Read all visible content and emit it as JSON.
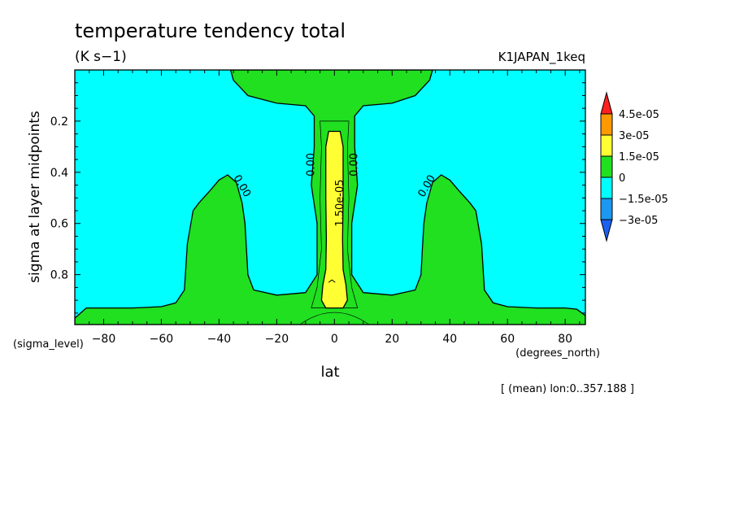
{
  "chart_data": {
    "type": "heatmap",
    "title": "temperature tendency total",
    "units": "(K s−1)",
    "run_name": "K1JAPAN_1keq",
    "xlabel": "lat",
    "xunits": "(degrees_north)",
    "ylabel": "sigma at layer midpoints",
    "yunits": "(sigma_level)",
    "footnote": "[ (mean) lon:0..357.188 ]",
    "xlim": [
      -90,
      87
    ],
    "ylim": [
      0.995,
      0.0
    ],
    "y_inverted": true,
    "xticks": [
      -80,
      -60,
      -40,
      -20,
      0,
      20,
      40,
      60,
      80
    ],
    "xtick_labels": [
      "−80",
      "−60",
      "−40",
      "−20",
      "0",
      "20",
      "40",
      "60",
      "80"
    ],
    "yticks": [
      0.2,
      0.4,
      0.6,
      0.8
    ],
    "ytick_labels": [
      "0.2",
      "0.4",
      "0.6",
      "0.8"
    ],
    "contour_labels": [
      {
        "text": "0.00",
        "lat": -33,
        "sigma": 0.46
      },
      {
        "text": "0.00",
        "lat": -7,
        "sigma": 0.37
      },
      {
        "text": "0.00",
        "lat": 8,
        "sigma": 0.37
      },
      {
        "text": "1.50e-05",
        "lat": 3,
        "sigma": 0.52
      },
      {
        "text": "0.00",
        "lat": 33,
        "sigma": 0.46
      }
    ],
    "colorbar": {
      "levels": [
        "4.5e-05",
        "3e-05",
        "1.5e-05",
        "0",
        "−1.5e-05",
        "−3e-05"
      ],
      "colors": [
        "#ff2020",
        "#ff9900",
        "#ffff33",
        "#20e020",
        "#00ffff",
        "#1c98f0"
      ],
      "bins": [
        {
          "range": "> 4.5e-05",
          "color": "#ff2020"
        },
        {
          "range": "3e-05 .. 4.5e-05",
          "color": "#ff9900"
        },
        {
          "range": "1.5e-05 .. 3e-05",
          "color": "#ffff33"
        },
        {
          "range": "0 .. 1.5e-05",
          "color": "#20e020"
        },
        {
          "range": "−1.5e-05 .. 0",
          "color": "#00ffff"
        },
        {
          "range": "−3e-05 .. −1.5e-05",
          "color": "#1c98f0"
        },
        {
          "range": "< −3e-05",
          "color": "#1c60f0"
        }
      ]
    },
    "fields": [
      {
        "name": "background",
        "value_range": "-1.5e-05 .. 0",
        "color": "#00ffff"
      },
      {
        "name": "surface band",
        "value_range": "0 .. 1.5e-05",
        "color": "#20e020",
        "boundary": [
          [
            -90,
            0.97
          ],
          [
            -86,
            0.93
          ],
          [
            -80,
            0.93
          ],
          [
            -70,
            0.93
          ],
          [
            -60,
            0.925
          ],
          [
            -55,
            0.91
          ],
          [
            -52,
            0.86
          ],
          [
            -51,
            0.68
          ],
          [
            -49,
            0.55
          ],
          [
            -47,
            0.52
          ],
          [
            -43,
            0.47
          ],
          [
            -40,
            0.43
          ],
          [
            -37,
            0.41
          ],
          [
            -34,
            0.44
          ],
          [
            -32,
            0.52
          ],
          [
            -31,
            0.6
          ],
          [
            -30.5,
            0.7
          ],
          [
            -30,
            0.8
          ],
          [
            -28,
            0.86
          ],
          [
            -20,
            0.88
          ],
          [
            -10,
            0.87
          ],
          [
            -6,
            0.8
          ],
          [
            -6,
            0.6
          ],
          [
            -8,
            0.45
          ],
          [
            -7,
            0.3
          ],
          [
            -7,
            0.18
          ],
          [
            -10,
            0.14
          ],
          [
            -20,
            0.13
          ],
          [
            -30,
            0.1
          ],
          [
            -35,
            0.04
          ],
          [
            -36,
            0.0
          ],
          [
            34,
            0.0
          ],
          [
            33,
            0.04
          ],
          [
            28,
            0.1
          ],
          [
            20,
            0.13
          ],
          [
            10,
            0.14
          ],
          [
            7,
            0.18
          ],
          [
            7,
            0.3
          ],
          [
            8,
            0.45
          ],
          [
            6,
            0.6
          ],
          [
            6,
            0.8
          ],
          [
            10,
            0.87
          ],
          [
            20,
            0.88
          ],
          [
            28,
            0.86
          ],
          [
            30,
            0.8
          ],
          [
            30.5,
            0.7
          ],
          [
            31,
            0.6
          ],
          [
            32,
            0.52
          ],
          [
            34,
            0.44
          ],
          [
            37,
            0.41
          ],
          [
            40,
            0.43
          ],
          [
            43,
            0.47
          ],
          [
            47,
            0.52
          ],
          [
            49,
            0.55
          ],
          [
            51,
            0.68
          ],
          [
            52,
            0.86
          ],
          [
            55,
            0.91
          ],
          [
            60,
            0.925
          ],
          [
            70,
            0.93
          ],
          [
            80,
            0.93
          ],
          [
            84,
            0.935
          ],
          [
            87,
            0.96
          ],
          [
            87,
            0.995
          ],
          [
            -90,
            0.995
          ]
        ]
      },
      {
        "name": "equatorial core",
        "value_range": "1.5e-05 .. 3e-05",
        "color": "#ffff33",
        "boundary": [
          [
            -2,
            0.24
          ],
          [
            2,
            0.24
          ],
          [
            3,
            0.3
          ],
          [
            3,
            0.5
          ],
          [
            2.8,
            0.66
          ],
          [
            3,
            0.78
          ],
          [
            4,
            0.84
          ],
          [
            4.5,
            0.9
          ],
          [
            3,
            0.93
          ],
          [
            -3,
            0.93
          ],
          [
            -4.5,
            0.9
          ],
          [
            -4,
            0.84
          ],
          [
            -3,
            0.78
          ],
          [
            -2.8,
            0.66
          ],
          [
            -3,
            0.5
          ],
          [
            -3,
            0.3
          ]
        ]
      }
    ]
  }
}
